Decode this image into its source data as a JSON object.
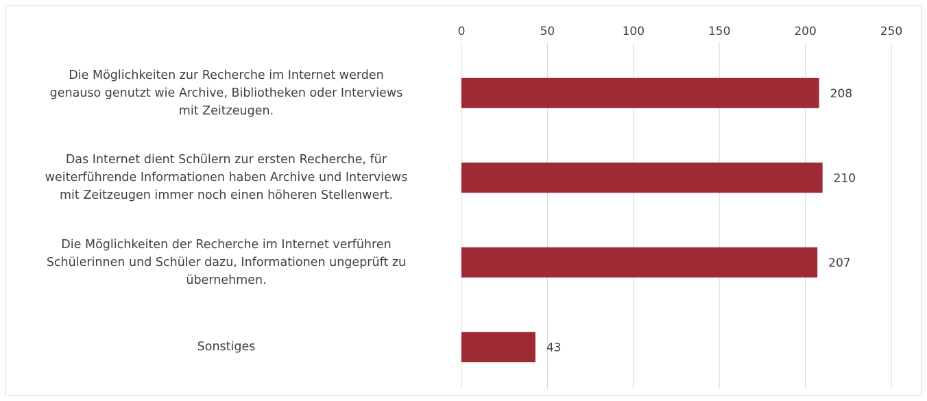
{
  "chart_data": {
    "type": "barh",
    "categories": [
      "Die Möglichkeiten zur Recherche im Internet werden\ngenauso genutzt wie Archive, Bibliotheken oder Interviews\nmit Zeitzeugen.",
      "Das Internet dient Schülern zur ersten Recherche, für\nweiterführende Informationen haben Archive und Interviews\nmit Zeitzeugen immer noch einen höheren Stellenwert.",
      "Die Möglichkeiten der Recherche im Internet verführen\nSchülerinnen und Schüler dazu, Informationen ungeprüft zu\nübernehmen.",
      "Sonstiges"
    ],
    "values": [
      208,
      210,
      207,
      43
    ],
    "color": "#9e2a36",
    "xlim": [
      0,
      250
    ],
    "xticks": [
      0,
      50,
      100,
      150,
      200,
      250
    ],
    "grid": true
  }
}
